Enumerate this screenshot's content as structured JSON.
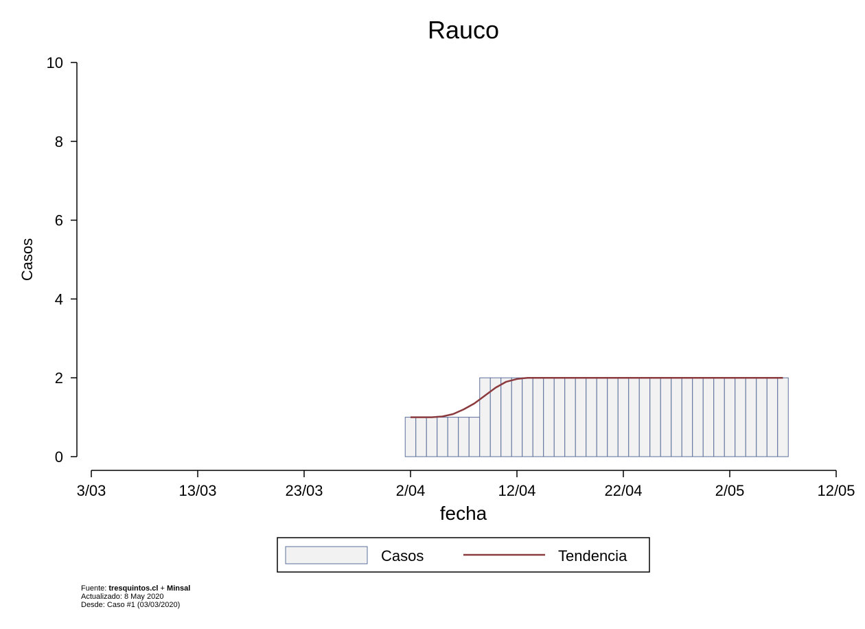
{
  "chart_data": {
    "type": "bar",
    "title": "Rauco",
    "xlabel": "fecha",
    "ylabel": "Casos",
    "ylim": [
      0,
      10
    ],
    "y_ticks": [
      "0",
      "2",
      "4",
      "6",
      "8",
      "10"
    ],
    "x_tick_labels": [
      "3/03",
      "13/03",
      "23/03",
      "2/04",
      "12/04",
      "22/04",
      "2/05",
      "12/05"
    ],
    "x_ticks": [
      "2020-03-03",
      "2020-03-13",
      "2020-03-23",
      "2020-04-02",
      "2020-04-12",
      "2020-04-22",
      "2020-05-02",
      "2020-05-12"
    ],
    "xlim": [
      "2020-03-03",
      "2020-05-12"
    ],
    "grid": false,
    "legend_position": "bottom",
    "series": [
      {
        "name": "Casos",
        "kind": "bar",
        "color": "#f2f2f2",
        "edge_color": "#5a6e9a",
        "x_start": "2020-04-02",
        "values": [
          1,
          1,
          1,
          1,
          1,
          1,
          1,
          2,
          2,
          2,
          2,
          2,
          2,
          2,
          2,
          2,
          2,
          2,
          2,
          2,
          2,
          2,
          2,
          2,
          2,
          2,
          2,
          2,
          2,
          2,
          2,
          2,
          2,
          2,
          2,
          2
        ]
      },
      {
        "name": "Tendencia",
        "kind": "line",
        "color": "#8b3a3e",
        "x_start": "2020-04-02",
        "values": [
          1,
          1,
          1,
          1.02,
          1.08,
          1.2,
          1.35,
          1.55,
          1.75,
          1.9,
          1.97,
          2,
          2,
          2,
          2,
          2,
          2,
          2,
          2,
          2,
          2,
          2,
          2,
          2,
          2,
          2,
          2,
          2,
          2,
          2,
          2,
          2,
          2,
          2,
          2,
          2
        ]
      }
    ]
  },
  "legend": {
    "bar_label": "Casos",
    "line_label": "Tendencia"
  },
  "source": {
    "fuente_prefix": "Fuente: ",
    "fuente_site": "tresquintos.cl",
    "fuente_join": " + ",
    "fuente_org": "Minsal",
    "updated": "Actualizado: 8 May 2020",
    "since": "Desde: Caso #1  (03/03/2020)"
  }
}
